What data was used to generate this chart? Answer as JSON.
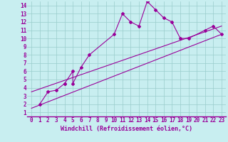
{
  "title": "",
  "xlabel": "Windchill (Refroidissement éolien,°C)",
  "bg_color": "#c8eef0",
  "line_color": "#990099",
  "grid_color": "#99cccc",
  "xlim": [
    -0.5,
    23.5
  ],
  "ylim": [
    0.5,
    14.5
  ],
  "xticks": [
    0,
    1,
    2,
    3,
    4,
    5,
    6,
    7,
    8,
    9,
    10,
    11,
    12,
    13,
    14,
    15,
    16,
    17,
    18,
    19,
    20,
    21,
    22,
    23
  ],
  "yticks": [
    1,
    2,
    3,
    4,
    5,
    6,
    7,
    8,
    9,
    10,
    11,
    12,
    13,
    14
  ],
  "scatter_x": [
    1,
    2,
    3,
    4,
    4,
    5,
    5,
    6,
    7,
    10,
    11,
    12,
    13,
    14,
    15,
    16,
    17,
    18,
    19,
    21,
    22,
    23
  ],
  "scatter_y": [
    2,
    3.5,
    3.7,
    4.5,
    4.5,
    6.0,
    4.5,
    6.5,
    8.0,
    10.5,
    13.0,
    12.0,
    11.5,
    14.5,
    13.5,
    12.5,
    12.0,
    10.0,
    10.0,
    11.0,
    11.5,
    10.5
  ],
  "line1_x": [
    0,
    23
  ],
  "line1_y": [
    1.5,
    10.5
  ],
  "line2_x": [
    0,
    23
  ],
  "line2_y": [
    3.5,
    11.5
  ],
  "tick_fontsize": 5.5,
  "xlabel_fontsize": 6.0
}
